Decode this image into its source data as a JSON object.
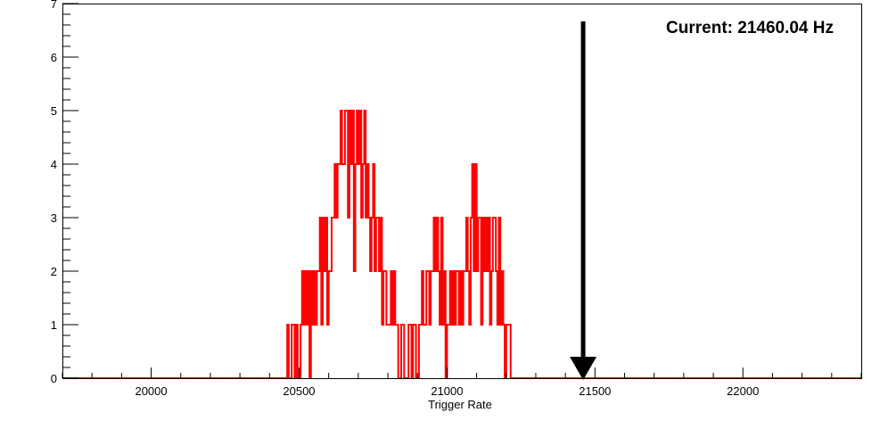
{
  "chart_data": {
    "type": "histogram",
    "title": "",
    "xlabel": "Trigger Rate",
    "ylabel": "",
    "xlim": [
      19700,
      22400
    ],
    "ylim": [
      0,
      7
    ],
    "x_ticks": [
      20000,
      20500,
      21000,
      21500,
      22000
    ],
    "y_ticks": [
      0,
      1,
      2,
      3,
      4,
      5,
      6,
      7
    ],
    "grid": false,
    "legend": "none",
    "series": [
      {
        "color": "#ff0000",
        "bin_width": 5,
        "bins_start": 20460,
        "counts": [
          1,
          0,
          0,
          1,
          1,
          0,
          1,
          0,
          0,
          1,
          2,
          1,
          2,
          1,
          2,
          0,
          2,
          1,
          2,
          1,
          2,
          2,
          3,
          1,
          3,
          2,
          3,
          1,
          2,
          2,
          3,
          3,
          4,
          3,
          4,
          4,
          5,
          4,
          4,
          5,
          5,
          3,
          5,
          4,
          5,
          2,
          4,
          5,
          4,
          5,
          3,
          4,
          5,
          3,
          4,
          3,
          2,
          3,
          4,
          2,
          3,
          3,
          2,
          3,
          1,
          2,
          2,
          1,
          1,
          1,
          2,
          1,
          2,
          1,
          1,
          0,
          0,
          1,
          1,
          0,
          0,
          0,
          1,
          1,
          0,
          1,
          1,
          0,
          0,
          1,
          1,
          2,
          1,
          1,
          2,
          2,
          1,
          2,
          2,
          3,
          2,
          3,
          2,
          1,
          3,
          1,
          2,
          0,
          1,
          1,
          2,
          1,
          2,
          1,
          2,
          2,
          1,
          2,
          1,
          2,
          2,
          3,
          2,
          1,
          3,
          4,
          2,
          4,
          2,
          3,
          3,
          1,
          3,
          2,
          3,
          2,
          3,
          1,
          2,
          3,
          3,
          2,
          1,
          3,
          1,
          2,
          1,
          0,
          1,
          1,
          1,
          0,
          0,
          0
        ],
        "bars": [
          {
            "x": 20460,
            "value": 1
          },
          {
            "x": 20465,
            "value": 0
          }
        ],
        "bars_note": ""
      }
    ],
    "annotations": [
      {
        "text": "Current: 21460.04 Hz",
        "marker_x": 21460.04
      }
    ]
  }
}
